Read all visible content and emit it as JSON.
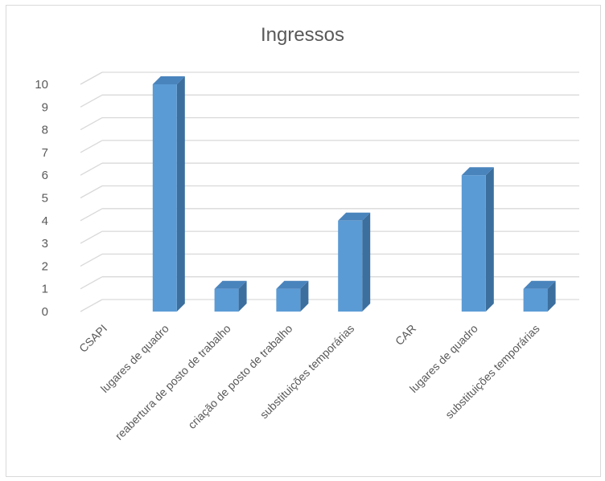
{
  "chart_data": {
    "type": "bar",
    "title": "Ingressos",
    "categories": [
      "CSAPI",
      "lugares de quadro",
      "reabertura de posto de trabalho",
      "criação de posto de trabalho",
      "substituições temporárias",
      "CAR",
      "lugares de quadro",
      "substituições temporárias"
    ],
    "values": [
      0,
      10,
      1,
      1,
      4,
      0,
      6,
      1
    ],
    "ylim": [
      0,
      10
    ],
    "yticks": [
      0,
      1,
      2,
      3,
      4,
      5,
      6,
      7,
      8,
      9,
      10
    ],
    "grid": true,
    "legend": "none",
    "style": "3d-column",
    "colors": {
      "bar_front": "#5b9bd5",
      "bar_side": "#3c6f9e",
      "bar_top": "#4a84bd",
      "grid": "#d9d9d9",
      "text": "#595959"
    }
  }
}
